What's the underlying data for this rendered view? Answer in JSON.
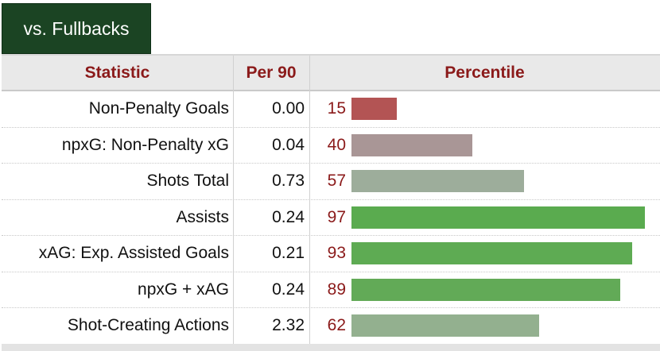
{
  "tab": {
    "label": "vs. Fullbacks"
  },
  "table": {
    "headers": {
      "statistic": "Statistic",
      "per90": "Per 90",
      "percentile": "Percentile"
    },
    "rows": [
      {
        "statistic": "Non-Penalty Goals",
        "per90": "0.00",
        "percentile": "15",
        "bar_color": "#b35454"
      },
      {
        "statistic": "npxG: Non-Penalty xG",
        "per90": "0.04",
        "percentile": "40",
        "bar_color": "#a99696"
      },
      {
        "statistic": "Shots Total",
        "per90": "0.73",
        "percentile": "57",
        "bar_color": "#9dad9b"
      },
      {
        "statistic": "Assists",
        "per90": "0.24",
        "percentile": "97",
        "bar_color": "#5aab4f"
      },
      {
        "statistic": "xAG: Exp. Assisted Goals",
        "per90": "0.21",
        "percentile": "93",
        "bar_color": "#5eab53"
      },
      {
        "statistic": "npxG + xAG",
        "per90": "0.24",
        "percentile": "89",
        "bar_color": "#62aa57"
      },
      {
        "statistic": "Shot-Creating Actions",
        "per90": "2.32",
        "percentile": "62",
        "bar_color": "#93b08f"
      }
    ]
  }
}
